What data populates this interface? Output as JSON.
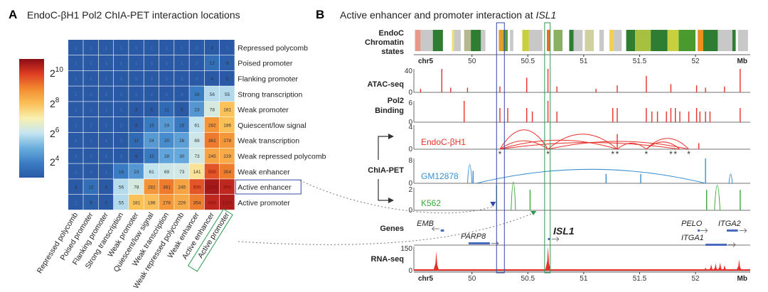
{
  "panel_a": {
    "letter": "A",
    "title": "EndoC-βH1 Pol2 ChIA-PET interaction locations"
  },
  "panel_b": {
    "letter": "B",
    "title_prefix": "Active enhancer and promoter interaction at ",
    "title_gene": "ISL1"
  },
  "colors": {
    "endoc": "#e8302a",
    "gm12878": "#3a8fd0",
    "k562": "#3aa83a",
    "enhancer_box": "#3848a8",
    "promoter_box": "#2a9a50"
  },
  "chart_data": [
    {
      "type": "heatmap",
      "title": "EndoC-βH1 Pol2 ChIA-PET interaction locations",
      "rows": [
        "Repressed polycomb",
        "Poised promoter",
        "Flanking promoter",
        "Strong transcription",
        "Weak promoter",
        "Quiescent/low signal",
        "Weak transcription",
        "Weak repressed polycomb",
        "Weak enhancer",
        "Active enhancer",
        "Active promoter"
      ],
      "columns": [
        "Repressed polycomb",
        "Poised promoter",
        "Flanking promoter",
        "Strong transcription",
        "Weak promoter",
        "Quiescent/low signal",
        "Weak transcription",
        "Weak repressed polycomb",
        "Weak enhancer",
        "Active enhancer",
        "Active promoter"
      ],
      "values": [
        [
          1,
          1,
          1,
          1,
          1,
          1,
          1,
          1,
          3,
          4,
          1
        ],
        [
          1,
          1,
          1,
          1,
          1,
          1,
          1,
          1,
          2,
          12,
          9
        ],
        [
          1,
          1,
          1,
          1,
          1,
          1,
          1,
          1,
          1,
          4,
          5
        ],
        [
          1,
          1,
          1,
          1,
          1,
          1,
          1,
          3,
          16,
          56,
          55
        ],
        [
          1,
          1,
          1,
          1,
          5,
          5,
          11,
          6,
          23,
          78,
          181
        ],
        [
          1,
          1,
          1,
          1,
          5,
          15,
          24,
          15,
          61,
          282,
          186
        ],
        [
          1,
          1,
          1,
          2,
          11,
          24,
          20,
          26,
          69,
          361,
          278
        ],
        [
          1,
          1,
          1,
          3,
          6,
          15,
          28,
          30,
          73,
          245,
          229
        ],
        [
          1,
          1,
          1,
          16,
          23,
          61,
          69,
          73,
          141,
          500,
          354
        ],
        [
          4,
          12,
          4,
          56,
          78,
          282,
          361,
          245,
          500,
          1200,
          900
        ],
        [
          1,
          9,
          5,
          55,
          181,
          186,
          278,
          229,
          354,
          900,
          1100
        ]
      ],
      "highlighted_row": "Active enhancer",
      "highlighted_column": "Active promoter",
      "colorbar": {
        "scale": "log2",
        "range": [
          8,
          2048
        ],
        "ticks": [
          {
            "base": "2",
            "exp": "10"
          },
          {
            "base": "2",
            "exp": "8"
          },
          {
            "base": "2",
            "exp": "6"
          },
          {
            "base": "2",
            "exp": "4"
          }
        ]
      }
    },
    {
      "type": "genome-tracks",
      "title": "Active enhancer and promoter interaction at ISL1",
      "chrom": "chr5",
      "unit": "Mb",
      "xlim": [
        49.48,
        52.49
      ],
      "xticks": [
        "50",
        "50.5",
        "51",
        "51.5",
        "52"
      ],
      "highlight_regions": [
        {
          "start": 50.22,
          "end": 50.29,
          "label": "enhancer"
        },
        {
          "start": 50.65,
          "end": 50.7,
          "label": "promoter"
        }
      ],
      "chromatin_label": [
        "EndoC",
        "Chromatin",
        "states"
      ],
      "chromatin_states": [
        [
          49.49,
          49.54,
          "#e89a88"
        ],
        [
          49.54,
          49.65,
          "#c8c8c8"
        ],
        [
          49.65,
          49.74,
          "#2e7d32"
        ],
        [
          49.82,
          49.84,
          "#efe070"
        ],
        [
          49.84,
          49.9,
          "#c8c8c8"
        ],
        [
          49.93,
          49.99,
          "#b8b890"
        ],
        [
          49.99,
          50.08,
          "#2e7d32"
        ],
        [
          50.08,
          50.12,
          "#c8c8c8"
        ],
        [
          50.24,
          50.28,
          "#e0a020"
        ],
        [
          50.28,
          50.32,
          "#5a9a30"
        ],
        [
          50.34,
          50.37,
          "#c8c8c8"
        ],
        [
          50.45,
          50.51,
          "#c8d040"
        ],
        [
          50.51,
          50.63,
          "#c8c8c8"
        ],
        [
          50.67,
          50.7,
          "#e87020"
        ],
        [
          50.73,
          50.81,
          "#8ab060"
        ],
        [
          50.87,
          50.91,
          "#2e7d32"
        ],
        [
          50.91,
          50.99,
          "#c8c8c8"
        ],
        [
          51.01,
          51.09,
          "#d0d0a0"
        ],
        [
          51.14,
          51.18,
          "#c8c8c8"
        ],
        [
          51.23,
          51.27,
          "#efd050"
        ],
        [
          51.27,
          51.34,
          "#c8c8c8"
        ],
        [
          51.38,
          51.46,
          "#2e7d32"
        ],
        [
          51.46,
          51.6,
          "#a8c040"
        ],
        [
          51.6,
          51.75,
          "#2e7d32"
        ],
        [
          51.75,
          51.85,
          "#c8d040"
        ],
        [
          51.85,
          52.0,
          "#4a9a30"
        ],
        [
          52.02,
          52.07,
          "#e89020"
        ],
        [
          52.07,
          52.2,
          "#2e7d32"
        ],
        [
          52.2,
          52.33,
          "#c8c8c8"
        ],
        [
          52.33,
          52.36,
          "#2e7d32"
        ],
        [
          52.38,
          52.47,
          "#c8c8c8"
        ]
      ],
      "tracks": [
        {
          "id": "atac",
          "label": [
            "ATAC-seq"
          ],
          "ymax": 40,
          "color": "#e8302a",
          "peaks": [
            [
              49.54,
              6
            ],
            [
              49.73,
              40
            ],
            [
              49.81,
              8
            ],
            [
              49.96,
              8
            ],
            [
              50.25,
              10
            ],
            [
              50.49,
              25
            ],
            [
              50.68,
              40
            ],
            [
              50.76,
              10
            ],
            [
              51.11,
              6
            ],
            [
              51.3,
              12
            ],
            [
              51.56,
              28
            ],
            [
              51.78,
              14
            ],
            [
              52.01,
              12
            ],
            [
              52.09,
              8
            ],
            [
              52.26,
              10
            ],
            [
              52.4,
              40
            ]
          ]
        },
        {
          "id": "pol2",
          "label": [
            "Pol2",
            "Binding"
          ],
          "ymax": 6,
          "color": "#e8302a",
          "peaks": [
            [
              49.93,
              6
            ],
            [
              50.25,
              4
            ],
            [
              50.32,
              4
            ],
            [
              50.49,
              4
            ],
            [
              50.54,
              3
            ],
            [
              50.68,
              6
            ],
            [
              50.76,
              3
            ],
            [
              51.26,
              4
            ],
            [
              51.3,
              4
            ],
            [
              51.56,
              4
            ],
            [
              51.61,
              3
            ],
            [
              51.66,
              3
            ],
            [
              51.74,
              3
            ],
            [
              51.78,
              4
            ],
            [
              51.82,
              4
            ],
            [
              51.86,
              3
            ],
            [
              51.94,
              3
            ],
            [
              52.01,
              4
            ],
            [
              52.04,
              3
            ],
            [
              52.09,
              3
            ],
            [
              52.13,
              3
            ],
            [
              52.4,
              4
            ]
          ]
        },
        {
          "id": "endoc",
          "label": [
            "EndoC-βH1"
          ],
          "ymax": 4,
          "color": "#e8302a",
          "loops": [
            [
              50.25,
              50.68,
              3.2
            ],
            [
              50.25,
              50.68,
              1.4
            ],
            [
              50.25,
              51.3,
              1.5
            ],
            [
              50.68,
              51.3,
              2.5
            ],
            [
              50.68,
              51.94,
              1.3
            ],
            [
              51.3,
              51.56,
              1
            ],
            [
              51.56,
              51.94,
              1.8
            ],
            [
              51.56,
              51.86,
              1.2
            ],
            [
              50.25,
              51.86,
              1.1
            ]
          ],
          "peaks": [
            [
              51.3,
              2.5
            ],
            [
              52.03,
              1
            ]
          ],
          "stars": [
            50.25,
            50.68,
            51.26,
            51.3,
            51.56,
            51.78,
            51.82,
            51.94
          ]
        },
        {
          "id": "gm12878",
          "label": [
            "GM12878"
          ],
          "ymax": 8,
          "color": "#3a8fd0",
          "loops": [
            [
              50.04,
              52.09,
              4.5
            ],
            [
              49.96,
              50.0,
              6
            ],
            [
              52.3,
              52.33,
              3
            ]
          ],
          "peaks": [
            [
              50.01,
              4
            ],
            [
              51.2,
              3
            ],
            [
              51.51,
              3
            ],
            [
              52.09,
              8
            ]
          ]
        },
        {
          "id": "k562",
          "label": [
            "K562"
          ],
          "ymax": 2,
          "color": "#3aa83a",
          "loops": [
            [
              50.35,
              50.39,
              2.5
            ],
            [
              52.17,
              52.22,
              2.2
            ]
          ],
          "peaks": [
            [
              50.22,
              2.2
            ],
            [
              50.52,
              1.8
            ],
            [
              52.1,
              1.8
            ],
            [
              52.4,
              1.8
            ]
          ]
        },
        {
          "id": "rnaseq",
          "label": [
            "RNA-seq"
          ],
          "ymax": 150,
          "color": "#e8302a",
          "peaks": [
            [
              49.68,
              120
            ],
            [
              49.98,
              10
            ],
            [
              50.02,
              12
            ],
            [
              50.05,
              8
            ],
            [
              50.68,
              150
            ],
            [
              52.09,
              20
            ],
            [
              52.14,
              40
            ],
            [
              52.18,
              45
            ],
            [
              52.22,
              50
            ],
            [
              52.26,
              35
            ],
            [
              52.39,
              70
            ]
          ]
        }
      ],
      "chiapet_label": "ChIA-PET",
      "genes_label": "Genes",
      "genes": [
        {
          "name": "EMB",
          "start": 49.72,
          "end": 49.75,
          "strand": "-"
        },
        {
          "name": "PARP8",
          "start": 49.97,
          "end": 50.16,
          "strand": "+"
        },
        {
          "name": "ISL1",
          "start": 50.68,
          "end": 50.7,
          "strand": "+"
        },
        {
          "name": "PELO",
          "start": 52.02,
          "end": 52.03,
          "strand": "+"
        },
        {
          "name": "ITGA1",
          "start": 52.09,
          "end": 52.28,
          "strand": "+"
        },
        {
          "name": "ITGA2",
          "start": 52.28,
          "end": 52.38,
          "strand": "+"
        }
      ]
    }
  ]
}
